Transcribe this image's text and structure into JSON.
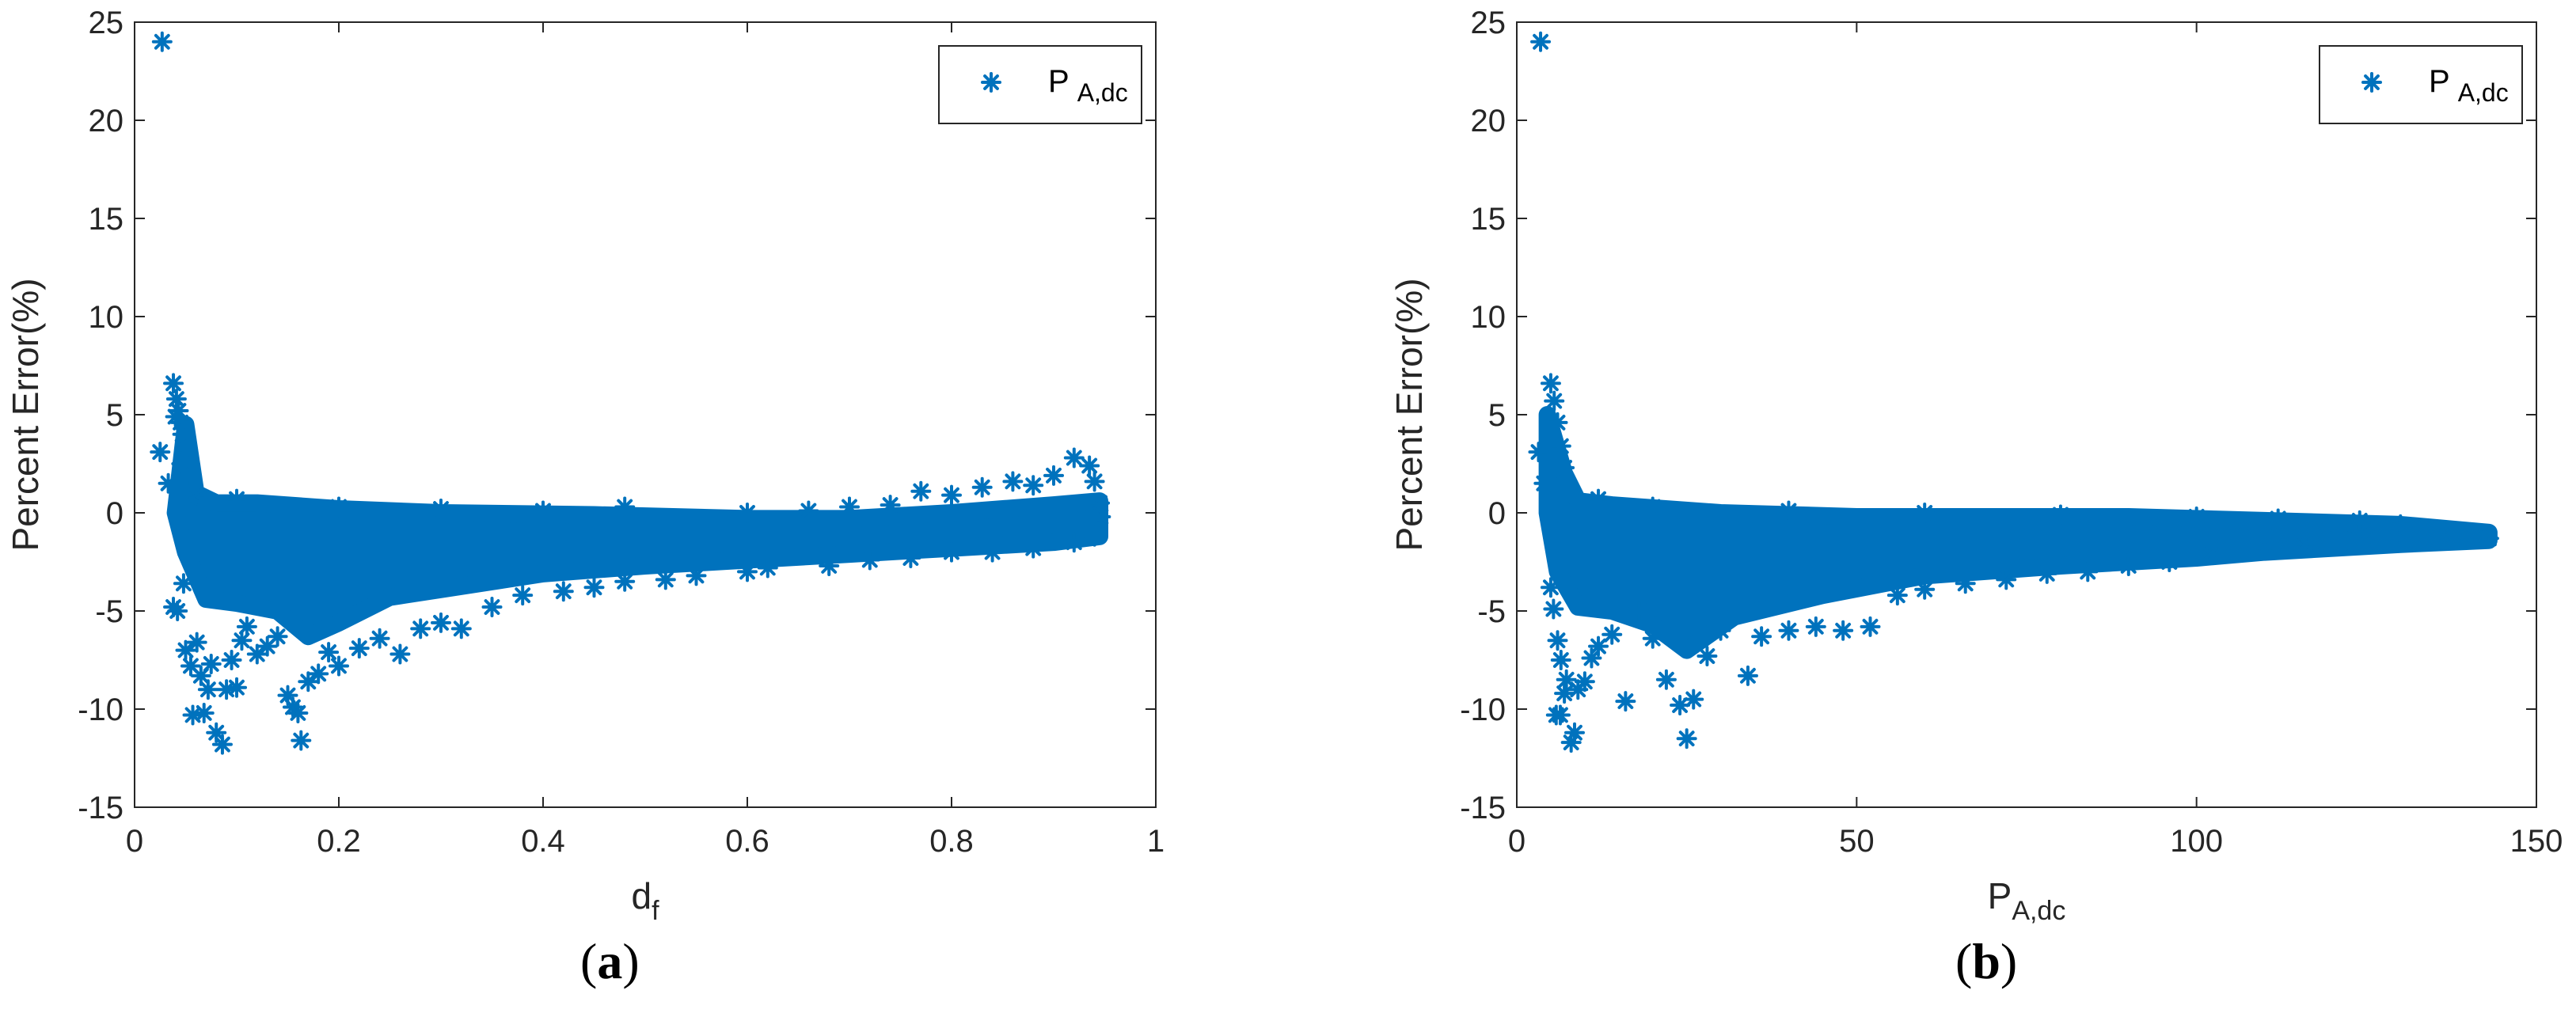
{
  "colors": {
    "marker": "#0072BD",
    "axis": "#262626"
  },
  "chart_data": [
    {
      "type": "scatter",
      "panel_label": {
        "open": "(",
        "letter": "a",
        "close": ")"
      },
      "xlabel": {
        "main": "d",
        "sub": "f"
      },
      "ylabel": "Percent Error(%)",
      "xlim": [
        0,
        1
      ],
      "ylim": [
        -15,
        25
      ],
      "xticks": [
        "0",
        "0.2",
        "0.4",
        "0.6",
        "0.8",
        "1"
      ],
      "yticks": [
        "25",
        "20",
        "15",
        "10",
        "5",
        "0",
        "-5",
        "-10",
        "-15"
      ],
      "grid": false,
      "legend": {
        "position": "top-right",
        "main": "P",
        "sub": "A,dc"
      },
      "series": [
        {
          "marker": "asterisk",
          "points": [
            [
              0.027,
              24.0
            ],
            [
              0.025,
              3.1
            ],
            [
              0.033,
              1.5
            ],
            [
              0.038,
              6.6
            ],
            [
              0.041,
              5.8
            ],
            [
              0.043,
              5.2
            ],
            [
              0.045,
              4.6
            ],
            [
              0.047,
              4.0
            ],
            [
              0.05,
              3.2
            ],
            [
              0.04,
              4.9
            ],
            [
              0.046,
              2.5
            ],
            [
              0.052,
              1.8
            ],
            [
              0.055,
              1.2
            ],
            [
              0.06,
              0.9
            ],
            [
              0.038,
              -4.8
            ],
            [
              0.042,
              -5.0
            ],
            [
              0.048,
              -3.6
            ],
            [
              0.05,
              -7.0
            ],
            [
              0.055,
              -7.8
            ],
            [
              0.057,
              -10.3
            ],
            [
              0.061,
              -6.6
            ],
            [
              0.065,
              -8.3
            ],
            [
              0.068,
              -10.2
            ],
            [
              0.072,
              -9.0
            ],
            [
              0.075,
              -7.7
            ],
            [
              0.08,
              -11.2
            ],
            [
              0.086,
              -11.8
            ],
            [
              0.09,
              -9.0
            ],
            [
              0.095,
              -7.5
            ],
            [
              0.1,
              -8.9
            ],
            [
              0.105,
              -6.5
            ],
            [
              0.11,
              -5.8
            ],
            [
              0.12,
              -7.2
            ],
            [
              0.13,
              -6.8
            ],
            [
              0.14,
              -6.3
            ],
            [
              0.15,
              -9.3
            ],
            [
              0.155,
              -9.9
            ],
            [
              0.16,
              -10.2
            ],
            [
              0.163,
              -11.6
            ],
            [
              0.17,
              -8.6
            ],
            [
              0.18,
              -8.2
            ],
            [
              0.19,
              -7.1
            ],
            [
              0.2,
              -7.8
            ],
            [
              0.22,
              -6.9
            ],
            [
              0.24,
              -6.4
            ],
            [
              0.26,
              -7.2
            ],
            [
              0.28,
              -5.9
            ],
            [
              0.3,
              -5.6
            ],
            [
              0.32,
              -5.9
            ],
            [
              0.35,
              -4.8
            ],
            [
              0.38,
              -4.2
            ],
            [
              0.42,
              -4.0
            ],
            [
              0.45,
              -3.8
            ],
            [
              0.48,
              -3.5
            ],
            [
              0.52,
              -3.4
            ],
            [
              0.55,
              -3.2
            ],
            [
              0.6,
              -3.0
            ],
            [
              0.62,
              -2.8
            ],
            [
              0.68,
              -2.7
            ],
            [
              0.72,
              -2.4
            ],
            [
              0.76,
              -2.3
            ],
            [
              0.8,
              -2.0
            ],
            [
              0.84,
              -2.0
            ],
            [
              0.88,
              -1.8
            ],
            [
              0.92,
              -1.5
            ],
            [
              0.94,
              -1.2
            ],
            [
              0.7,
              0.3
            ],
            [
              0.74,
              0.4
            ],
            [
              0.77,
              1.1
            ],
            [
              0.8,
              0.9
            ],
            [
              0.83,
              1.3
            ],
            [
              0.86,
              1.6
            ],
            [
              0.88,
              1.4
            ],
            [
              0.9,
              1.9
            ],
            [
              0.92,
              2.8
            ],
            [
              0.935,
              2.4
            ],
            [
              0.94,
              1.6
            ],
            [
              0.945,
              0.5
            ],
            [
              0.946,
              -0.2
            ],
            [
              0.1,
              0.7
            ],
            [
              0.2,
              0.3
            ],
            [
              0.3,
              0.2
            ],
            [
              0.4,
              0.1
            ],
            [
              0.48,
              0.3
            ],
            [
              0.6,
              0.0
            ],
            [
              0.66,
              0.1
            ]
          ],
          "band": {
            "upper": [
              [
                0.05,
                4.5
              ],
              [
                0.06,
                1.0
              ],
              [
                0.08,
                0.5
              ],
              [
                0.12,
                0.5
              ],
              [
                0.2,
                0.2
              ],
              [
                0.3,
                0.0
              ],
              [
                0.45,
                -0.1
              ],
              [
                0.6,
                -0.3
              ],
              [
                0.7,
                -0.3
              ],
              [
                0.8,
                0.0
              ],
              [
                0.9,
                0.4
              ],
              [
                0.945,
                0.6
              ]
            ],
            "lower": [
              [
                0.945,
                -1.2
              ],
              [
                0.9,
                -1.5
              ],
              [
                0.8,
                -1.8
              ],
              [
                0.7,
                -2.1
              ],
              [
                0.6,
                -2.4
              ],
              [
                0.5,
                -2.7
              ],
              [
                0.4,
                -3.1
              ],
              [
                0.3,
                -3.9
              ],
              [
                0.25,
                -4.3
              ],
              [
                0.2,
                -5.6
              ],
              [
                0.17,
                -6.3
              ],
              [
                0.14,
                -5.0
              ],
              [
                0.1,
                -4.6
              ],
              [
                0.07,
                -4.4
              ],
              [
                0.05,
                -2.0
              ],
              [
                0.04,
                0.0
              ]
            ]
          }
        }
      ]
    },
    {
      "type": "scatter",
      "panel_label": {
        "open": "(",
        "letter": "b",
        "close": ")"
      },
      "xlabel": {
        "main": "P",
        "sub": "A,dc"
      },
      "ylabel": "Percent Error(%)",
      "xlim": [
        0,
        150
      ],
      "ylim": [
        -15,
        25
      ],
      "xticks": [
        "0",
        "50",
        "100",
        "150"
      ],
      "yticks": [
        "25",
        "20",
        "15",
        "10",
        "5",
        "0",
        "-5",
        "-10",
        "-15"
      ],
      "grid": false,
      "legend": {
        "position": "top-right",
        "main": "P",
        "sub": "A,dc"
      },
      "series": [
        {
          "marker": "asterisk",
          "points": [
            [
              3.5,
              24.0
            ],
            [
              3.2,
              3.1
            ],
            [
              4.0,
              1.5
            ],
            [
              5.0,
              6.6
            ],
            [
              5.5,
              5.7
            ],
            [
              6.0,
              4.6
            ],
            [
              6.5,
              3.4
            ],
            [
              7.0,
              2.3
            ],
            [
              5.0,
              -3.8
            ],
            [
              5.4,
              -4.9
            ],
            [
              6.0,
              -6.5
            ],
            [
              6.5,
              -7.5
            ],
            [
              7.0,
              -9.2
            ],
            [
              5.8,
              -10.3
            ],
            [
              6.4,
              -10.3
            ],
            [
              7.3,
              -8.5
            ],
            [
              8.0,
              -11.7
            ],
            [
              8.5,
              -11.2
            ],
            [
              9.0,
              -9.0
            ],
            [
              10.0,
              -8.6
            ],
            [
              11.0,
              -7.4
            ],
            [
              12.0,
              -6.8
            ],
            [
              14.0,
              -6.2
            ],
            [
              16.0,
              -9.6
            ],
            [
              18.0,
              -5.0
            ],
            [
              20.0,
              -6.4
            ],
            [
              22.0,
              -8.5
            ],
            [
              24.0,
              -9.8
            ],
            [
              25.0,
              -11.5
            ],
            [
              26.0,
              -9.5
            ],
            [
              28.0,
              -7.3
            ],
            [
              30.0,
              -6.0
            ],
            [
              34.0,
              -8.3
            ],
            [
              36.0,
              -6.3
            ],
            [
              40.0,
              -6.0
            ],
            [
              44.0,
              -5.8
            ],
            [
              48.0,
              -6.0
            ],
            [
              52.0,
              -5.8
            ],
            [
              56.0,
              -4.2
            ],
            [
              60.0,
              -3.9
            ],
            [
              66.0,
              -3.6
            ],
            [
              72.0,
              -3.4
            ],
            [
              78.0,
              -3.1
            ],
            [
              84.0,
              -3.0
            ],
            [
              90.0,
              -2.7
            ],
            [
              96.0,
              -2.5
            ],
            [
              102.0,
              -2.1
            ],
            [
              110.0,
              -1.8
            ],
            [
              116.0,
              -1.6
            ],
            [
              122.0,
              -1.4
            ],
            [
              128.0,
              -1.3
            ],
            [
              134.0,
              -1.1
            ],
            [
              138.0,
              -1.0
            ],
            [
              141.0,
              -1.1
            ],
            [
              143.0,
              -1.3
            ],
            [
              130.0,
              -0.6
            ],
            [
              124.0,
              -0.4
            ],
            [
              112.0,
              -0.3
            ],
            [
              100.0,
              -0.2
            ],
            [
              80.0,
              -0.1
            ],
            [
              60.0,
              0.0
            ],
            [
              40.0,
              0.1
            ],
            [
              20.0,
              0.3
            ],
            [
              12.0,
              0.7
            ]
          ],
          "band": {
            "upper": [
              [
                4.5,
                5.0
              ],
              [
                7.0,
                2.0
              ],
              [
                9.0,
                0.6
              ],
              [
                14.0,
                0.4
              ],
              [
                30.0,
                0.0
              ],
              [
                50.0,
                -0.2
              ],
              [
                70.0,
                -0.2
              ],
              [
                90.0,
                -0.2
              ],
              [
                110.0,
                -0.4
              ],
              [
                130.0,
                -0.6
              ],
              [
                143.0,
                -1.0
              ]
            ],
            "lower": [
              [
                143.0,
                -1.4
              ],
              [
                130.0,
                -1.6
              ],
              [
                110.0,
                -2.0
              ],
              [
                100.0,
                -2.3
              ],
              [
                80.0,
                -2.7
              ],
              [
                60.0,
                -3.2
              ],
              [
                45.0,
                -4.2
              ],
              [
                32.0,
                -5.3
              ],
              [
                25.0,
                -7.0
              ],
              [
                20.0,
                -5.7
              ],
              [
                14.0,
                -5.0
              ],
              [
                9.0,
                -4.8
              ],
              [
                6.0,
                -3.0
              ],
              [
                4.5,
                0.0
              ]
            ]
          }
        }
      ]
    }
  ]
}
